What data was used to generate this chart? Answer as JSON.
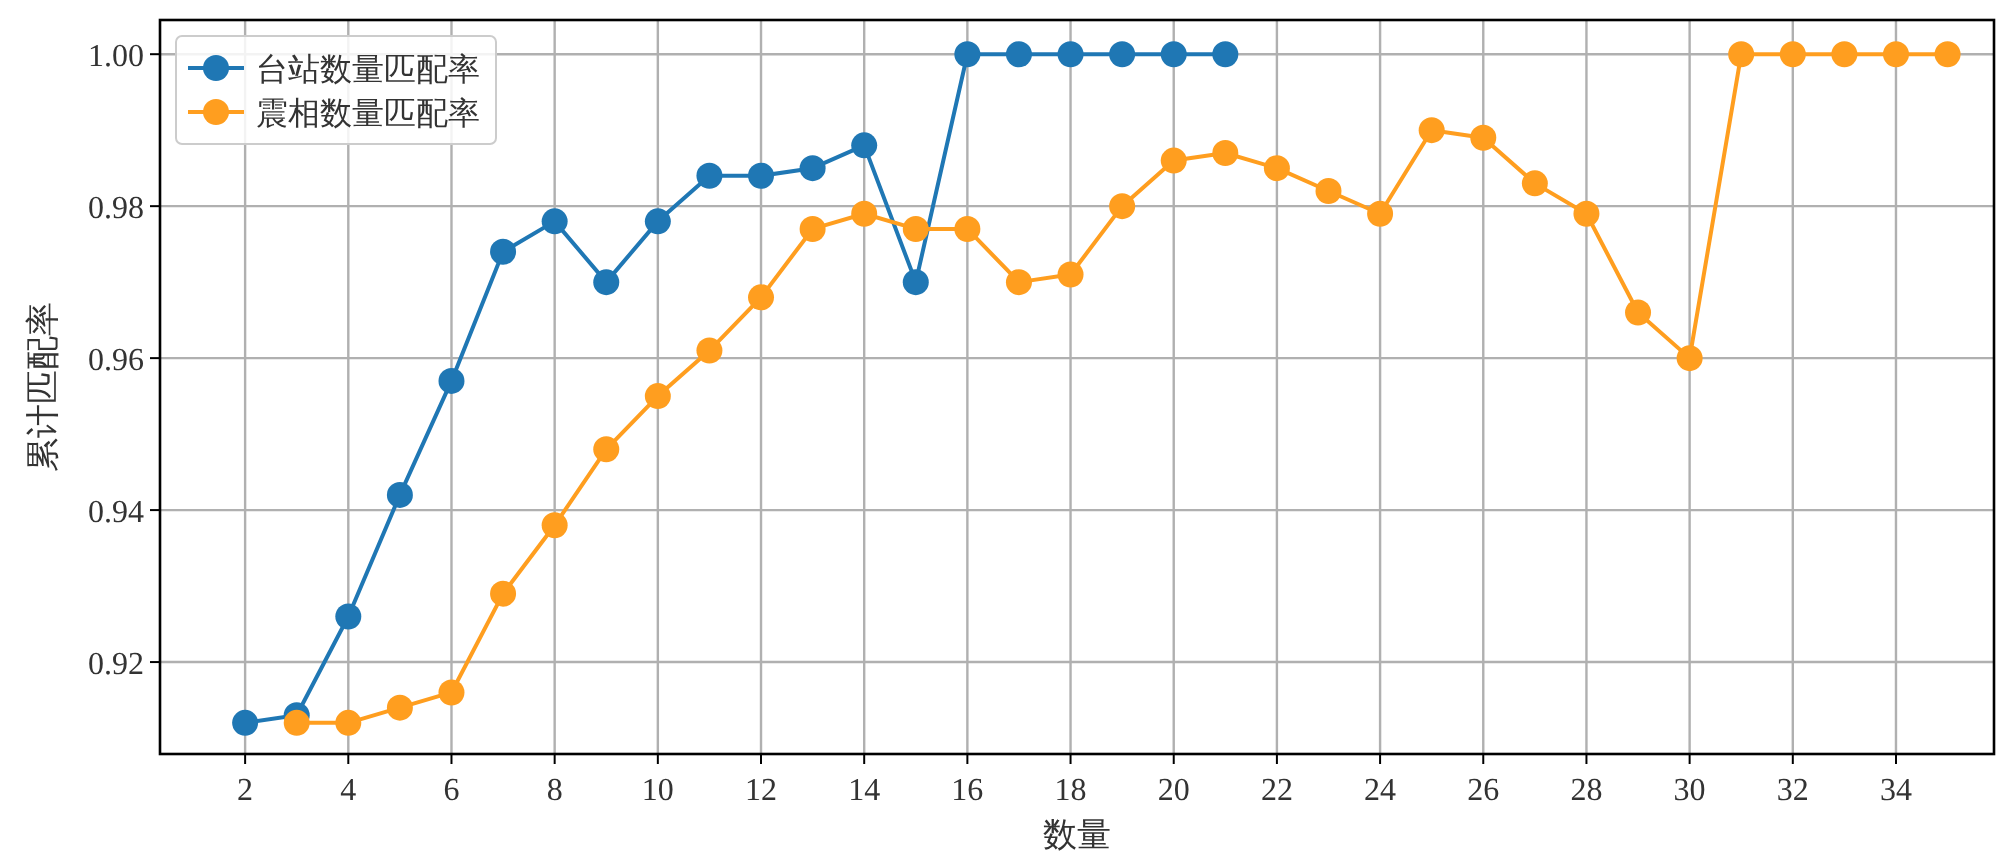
{
  "chart_data": {
    "type": "line",
    "xlabel": "数量",
    "ylabel": "累计匹配率",
    "xlim": [
      0.35,
      35.9
    ],
    "ylim": [
      0.9079,
      1.0045
    ],
    "xticks": [
      2,
      4,
      6,
      8,
      10,
      12,
      14,
      16,
      18,
      20,
      22,
      24,
      26,
      28,
      30,
      32,
      34
    ],
    "yticks": [
      {
        "value": 0.92,
        "label": "0.92"
      },
      {
        "value": 0.94,
        "label": "0.94"
      },
      {
        "value": 0.96,
        "label": "0.96"
      },
      {
        "value": 0.98,
        "label": "0.98"
      },
      {
        "value": 1.0,
        "label": "1.00"
      }
    ],
    "grid": true,
    "legend": "top left",
    "marker": "circle",
    "line_style": "solid",
    "series": [
      {
        "name": "台站数量匹配率",
        "color": "#1f77b4",
        "x": [
          2,
          3,
          4,
          5,
          6,
          7,
          8,
          9,
          10,
          11,
          12,
          13,
          14,
          15,
          16,
          17,
          18,
          19,
          20,
          21
        ],
        "values": [
          0.912,
          0.913,
          0.926,
          0.942,
          0.957,
          0.974,
          0.978,
          0.97,
          0.978,
          0.984,
          0.984,
          0.985,
          0.988,
          0.97,
          1.0,
          1.0,
          1.0,
          1.0,
          1.0,
          1.0
        ]
      },
      {
        "name": "震相数量匹配率",
        "color": "#ff9e1f",
        "x": [
          3,
          4,
          5,
          6,
          7,
          8,
          9,
          10,
          11,
          12,
          13,
          14,
          15,
          16,
          17,
          18,
          19,
          20,
          21,
          22,
          23,
          24,
          25,
          26,
          27,
          28,
          29,
          30,
          31,
          32,
          33,
          34,
          35
        ],
        "values": [
          0.912,
          0.912,
          0.914,
          0.916,
          0.929,
          0.938,
          0.948,
          0.955,
          0.961,
          0.968,
          0.977,
          0.979,
          0.977,
          0.977,
          0.97,
          0.971,
          0.98,
          0.986,
          0.987,
          0.985,
          0.982,
          0.979,
          0.99,
          0.989,
          0.983,
          0.979,
          0.966,
          0.96,
          1.0,
          1.0,
          1.0,
          1.0,
          1.0
        ]
      }
    ]
  }
}
